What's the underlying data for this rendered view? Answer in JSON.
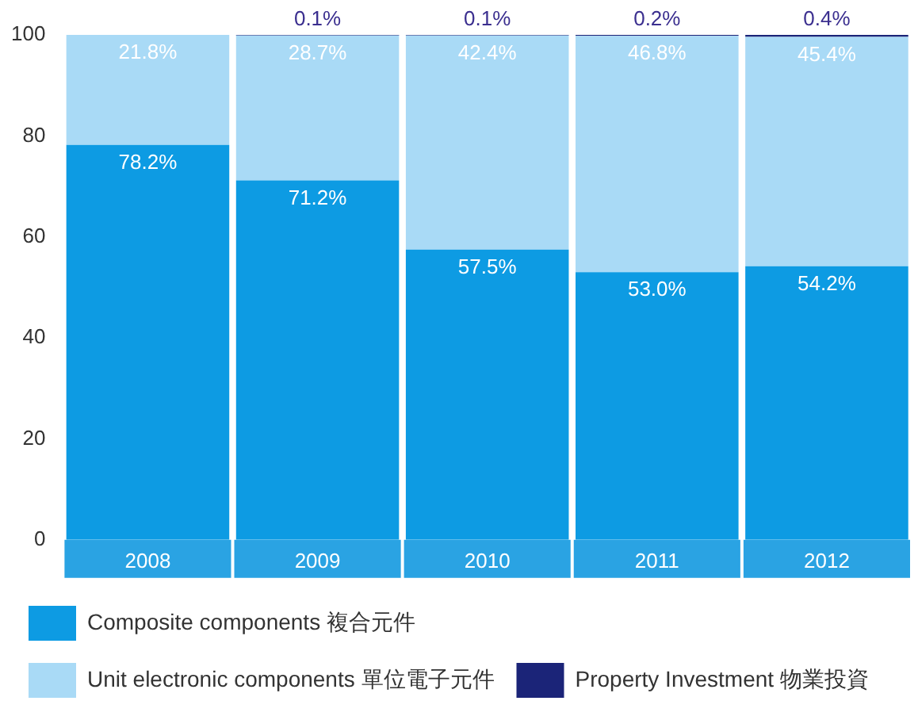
{
  "chart_data": {
    "type": "bar",
    "stacked": true,
    "categories": [
      "2008",
      "2009",
      "2010",
      "2011",
      "2012"
    ],
    "series": [
      {
        "name": "Composite components 複合元件",
        "color": "#0d9be3",
        "values": [
          78.2,
          71.2,
          57.5,
          53.0,
          54.2
        ],
        "value_labels": [
          "78.2%",
          "71.2%",
          "57.5%",
          "53.0%",
          "54.2%"
        ]
      },
      {
        "name": "Unit electronic components 單位電子元件",
        "color": "#a9daf6",
        "values": [
          21.8,
          28.7,
          42.4,
          46.8,
          45.4
        ],
        "value_labels": [
          "21.8%",
          "28.7%",
          "42.4%",
          "46.8%",
          "45.4%"
        ]
      },
      {
        "name": "Property Investment 物業投資",
        "color": "#1b2478",
        "values": [
          null,
          0.1,
          0.1,
          0.2,
          0.4
        ],
        "value_labels": [
          null,
          "0.1%",
          "0.1%",
          "0.2%",
          "0.4%"
        ]
      }
    ],
    "ylim": [
      0,
      100
    ],
    "yticks": [
      0,
      20,
      40,
      60,
      80,
      100
    ],
    "grid": false,
    "legend": "bottom"
  }
}
